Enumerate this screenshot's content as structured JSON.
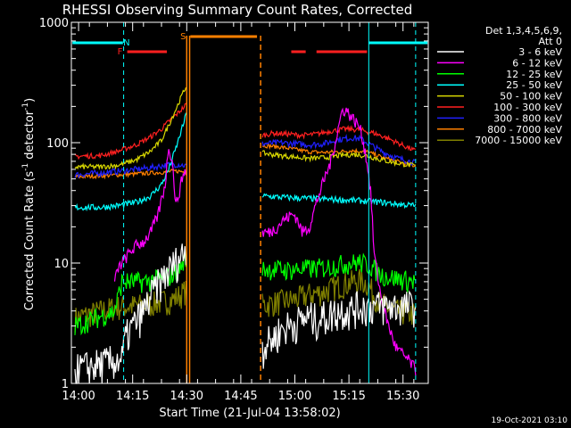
{
  "chart_data": {
    "type": "line",
    "title": "RHESSI Observing Summary Count Rates, Corrected",
    "xlabel": "Start Time (21-Jul-04 13:58:02)",
    "ylabel": "Corrected Count Rate (s⁻¹ detector⁻¹)",
    "ylabel_main": "Corrected Count Rate (s",
    "ylabel_sup1": "-1",
    "ylabel_mid": " detector",
    "ylabel_sup2": "-1",
    "ylabel_end": ")",
    "y_scale": "log",
    "ylim": [
      1,
      1000
    ],
    "xlim_minutes": [
      0,
      99
    ],
    "x_ticks": [
      {
        "label": "14:00",
        "m": 2
      },
      {
        "label": "14:15",
        "m": 17
      },
      {
        "label": "14:30",
        "m": 32
      },
      {
        "label": "14:45",
        "m": 47
      },
      {
        "label": "15:00",
        "m": 62
      },
      {
        "label": "15:15",
        "m": 77
      },
      {
        "label": "15:30",
        "m": 92
      }
    ],
    "y_ticks": [
      {
        "label": "1",
        "v": 1
      },
      {
        "label": "10",
        "v": 10
      },
      {
        "label": "100",
        "v": 100
      },
      {
        "label": "1000",
        "v": 1000
      }
    ],
    "legend_header": "Det 1,3,4,5,6,9,",
    "legend_header2": "Att 0",
    "legend_position": "right",
    "series": [
      {
        "name": "3 - 6 keV",
        "color": "#ffffff",
        "level": "a",
        "seg1": [
          [
            1,
            1.3
          ],
          [
            14,
            1.6
          ],
          [
            15,
            2.4
          ],
          [
            17,
            3.0
          ],
          [
            20,
            4.0
          ],
          [
            23,
            6.0
          ],
          [
            26,
            8.0
          ],
          [
            28,
            9.5
          ],
          [
            31,
            12.0
          ],
          [
            32,
            14.0
          ]
        ],
        "seg2": [
          [
            53,
            2.0
          ],
          [
            56,
            2.4
          ],
          [
            58,
            2.8
          ],
          [
            60,
            3.0
          ],
          [
            62,
            3.2
          ],
          [
            64,
            3.4
          ],
          [
            66,
            3.6
          ],
          [
            68,
            3.4
          ],
          [
            70,
            3.6
          ],
          [
            72,
            3.8
          ],
          [
            74,
            4.0
          ],
          [
            76,
            4.2
          ],
          [
            77,
            4.0
          ],
          [
            78,
            4.2
          ],
          [
            80,
            4.4
          ],
          [
            86,
            4.4
          ],
          [
            90,
            4.4
          ],
          [
            94,
            4.4
          ],
          [
            95.5,
            4.4
          ]
        ]
      },
      {
        "name": "6 - 12 keV",
        "color": "#ff00ff",
        "level": "a",
        "seg1": [
          [
            12,
            7
          ],
          [
            13,
            9
          ],
          [
            14,
            10
          ],
          [
            16,
            12
          ],
          [
            18,
            14
          ],
          [
            20,
            15
          ],
          [
            22,
            18
          ],
          [
            24,
            25
          ],
          [
            26,
            45
          ],
          [
            27,
            95
          ],
          [
            28,
            70
          ],
          [
            29,
            30
          ],
          [
            30,
            40
          ],
          [
            31,
            55
          ],
          [
            32,
            60
          ]
        ],
        "seg2": [
          [
            53,
            18
          ],
          [
            55,
            18
          ],
          [
            57,
            20
          ],
          [
            59,
            23
          ],
          [
            61,
            25
          ],
          [
            62,
            25
          ],
          [
            63,
            22
          ],
          [
            64,
            18
          ],
          [
            66,
            20
          ],
          [
            68,
            32
          ],
          [
            70,
            48
          ],
          [
            72,
            70
          ],
          [
            74,
            130
          ],
          [
            75,
            180
          ],
          [
            76,
            190
          ],
          [
            78,
            160
          ],
          [
            80,
            135
          ],
          [
            81,
            100
          ],
          [
            82,
            70
          ],
          [
            83,
            40
          ],
          [
            84,
            12
          ],
          [
            86,
            5
          ],
          [
            88,
            3
          ],
          [
            90,
            2
          ],
          [
            94,
            1.5
          ],
          [
            95.5,
            1.3
          ]
        ]
      },
      {
        "name": "12 - 25 keV",
        "color": "#00ff00",
        "level": "a",
        "seg1": [
          [
            1,
            3.0
          ],
          [
            12,
            4.0
          ],
          [
            14,
            7.0
          ],
          [
            20,
            7.0
          ],
          [
            26,
            7.5
          ],
          [
            28,
            8.0
          ],
          [
            30,
            9.0
          ],
          [
            31,
            10.0
          ],
          [
            32,
            12.0
          ]
        ],
        "seg2": [
          [
            53,
            9.0
          ],
          [
            60,
            8.8
          ],
          [
            70,
            9.2
          ],
          [
            75,
            9.8
          ],
          [
            80,
            10.2
          ],
          [
            83,
            9.5
          ],
          [
            86,
            8.0
          ],
          [
            90,
            7.5
          ],
          [
            95.5,
            7.0
          ]
        ]
      },
      {
        "name": "25 - 50 keV",
        "color": "#00ffff",
        "level": "a",
        "seg1": [
          [
            1,
            29
          ],
          [
            8,
            29
          ],
          [
            13,
            30
          ],
          [
            18,
            32
          ],
          [
            22,
            36
          ],
          [
            25,
            45
          ],
          [
            27,
            60
          ],
          [
            29,
            90
          ],
          [
            31,
            140
          ],
          [
            32,
            180
          ]
        ],
        "seg2": [
          [
            53,
            36
          ],
          [
            60,
            35
          ],
          [
            70,
            34
          ],
          [
            80,
            33
          ],
          [
            86,
            32
          ],
          [
            90,
            31
          ],
          [
            95.5,
            30
          ]
        ]
      },
      {
        "name": "50 - 100 keV",
        "color": "#d8d800",
        "level": "a",
        "seg1": [
          [
            1,
            63
          ],
          [
            8,
            63
          ],
          [
            13,
            65
          ],
          [
            18,
            72
          ],
          [
            22,
            85
          ],
          [
            25,
            105
          ],
          [
            27,
            140
          ],
          [
            29,
            190
          ],
          [
            31,
            260
          ],
          [
            32,
            300
          ]
        ],
        "seg2": [
          [
            53,
            82
          ],
          [
            58,
            78
          ],
          [
            62,
            76
          ],
          [
            66,
            74
          ],
          [
            70,
            75
          ],
          [
            74,
            78
          ],
          [
            78,
            80
          ],
          [
            82,
            78
          ],
          [
            86,
            72
          ],
          [
            90,
            68
          ],
          [
            95.5,
            64
          ]
        ]
      },
      {
        "name": "100 - 300 keV",
        "color": "#ff2020",
        "level": "a",
        "seg1": [
          [
            1,
            77
          ],
          [
            8,
            78
          ],
          [
            13,
            85
          ],
          [
            18,
            96
          ],
          [
            22,
            112
          ],
          [
            25,
            130
          ],
          [
            27,
            150
          ],
          [
            29,
            170
          ],
          [
            31,
            195
          ],
          [
            32,
            210
          ]
        ],
        "seg2": [
          [
            53,
            115
          ],
          [
            56,
            120
          ],
          [
            60,
            118
          ],
          [
            64,
            115
          ],
          [
            68,
            118
          ],
          [
            72,
            125
          ],
          [
            76,
            130
          ],
          [
            80,
            128
          ],
          [
            84,
            120
          ],
          [
            88,
            108
          ],
          [
            92,
            95
          ],
          [
            95.5,
            85
          ]
        ]
      },
      {
        "name": "300 - 800 keV",
        "color": "#2020ff",
        "level": "a",
        "seg1": [
          [
            1,
            54
          ],
          [
            8,
            56
          ],
          [
            13,
            58
          ],
          [
            18,
            60
          ],
          [
            22,
            62
          ],
          [
            26,
            65
          ],
          [
            28,
            66
          ],
          [
            30,
            66
          ],
          [
            32,
            64
          ]
        ],
        "seg2": [
          [
            53,
            98
          ],
          [
            58,
            100
          ],
          [
            62,
            98
          ],
          [
            66,
            96
          ],
          [
            70,
            98
          ],
          [
            74,
            106
          ],
          [
            78,
            110
          ],
          [
            80,
            108
          ],
          [
            82,
            100
          ],
          [
            86,
            85
          ],
          [
            90,
            75
          ],
          [
            95.5,
            68
          ]
        ]
      },
      {
        "name": "800 - 7000 keV",
        "color": "#ff8000",
        "level": "a",
        "seg1": [
          [
            1,
            52
          ],
          [
            8,
            53
          ],
          [
            13,
            54
          ],
          [
            18,
            55
          ],
          [
            22,
            56
          ],
          [
            26,
            57
          ],
          [
            28,
            58
          ],
          [
            30,
            58
          ],
          [
            32,
            57
          ]
        ],
        "seg2": [
          [
            53,
            95
          ],
          [
            58,
            92
          ],
          [
            62,
            88
          ],
          [
            66,
            84
          ],
          [
            70,
            83
          ],
          [
            74,
            84
          ],
          [
            78,
            86
          ],
          [
            82,
            84
          ],
          [
            86,
            76
          ],
          [
            90,
            70
          ],
          [
            95.5,
            64
          ]
        ]
      },
      {
        "name": "7000 - 15000 keV",
        "color": "#808000",
        "level": "a",
        "seg1": [
          [
            1,
            3.5
          ],
          [
            12,
            4.3
          ],
          [
            16,
            4.4
          ],
          [
            20,
            4.5
          ],
          [
            24,
            4.7
          ],
          [
            28,
            5.0
          ],
          [
            30,
            5.4
          ],
          [
            32,
            6.0
          ]
        ],
        "seg2": [
          [
            53,
            4.5
          ],
          [
            58,
            4.8
          ],
          [
            62,
            5.0
          ],
          [
            66,
            5.5
          ],
          [
            70,
            5.8
          ],
          [
            74,
            6.5
          ],
          [
            78,
            7.0
          ],
          [
            80,
            7.2
          ],
          [
            82,
            6.8
          ],
          [
            84,
            5.5
          ],
          [
            86,
            4.5
          ],
          [
            90,
            4.0
          ],
          [
            95.5,
            3.8
          ]
        ]
      }
    ],
    "markers": [
      {
        "label": "N",
        "color": "#00ffff"
      },
      {
        "label": "F",
        "color": "#ff2020"
      },
      {
        "label": "S",
        "color": "#ff8000"
      }
    ],
    "footer_date": "19-Oct-2021 03:10"
  }
}
